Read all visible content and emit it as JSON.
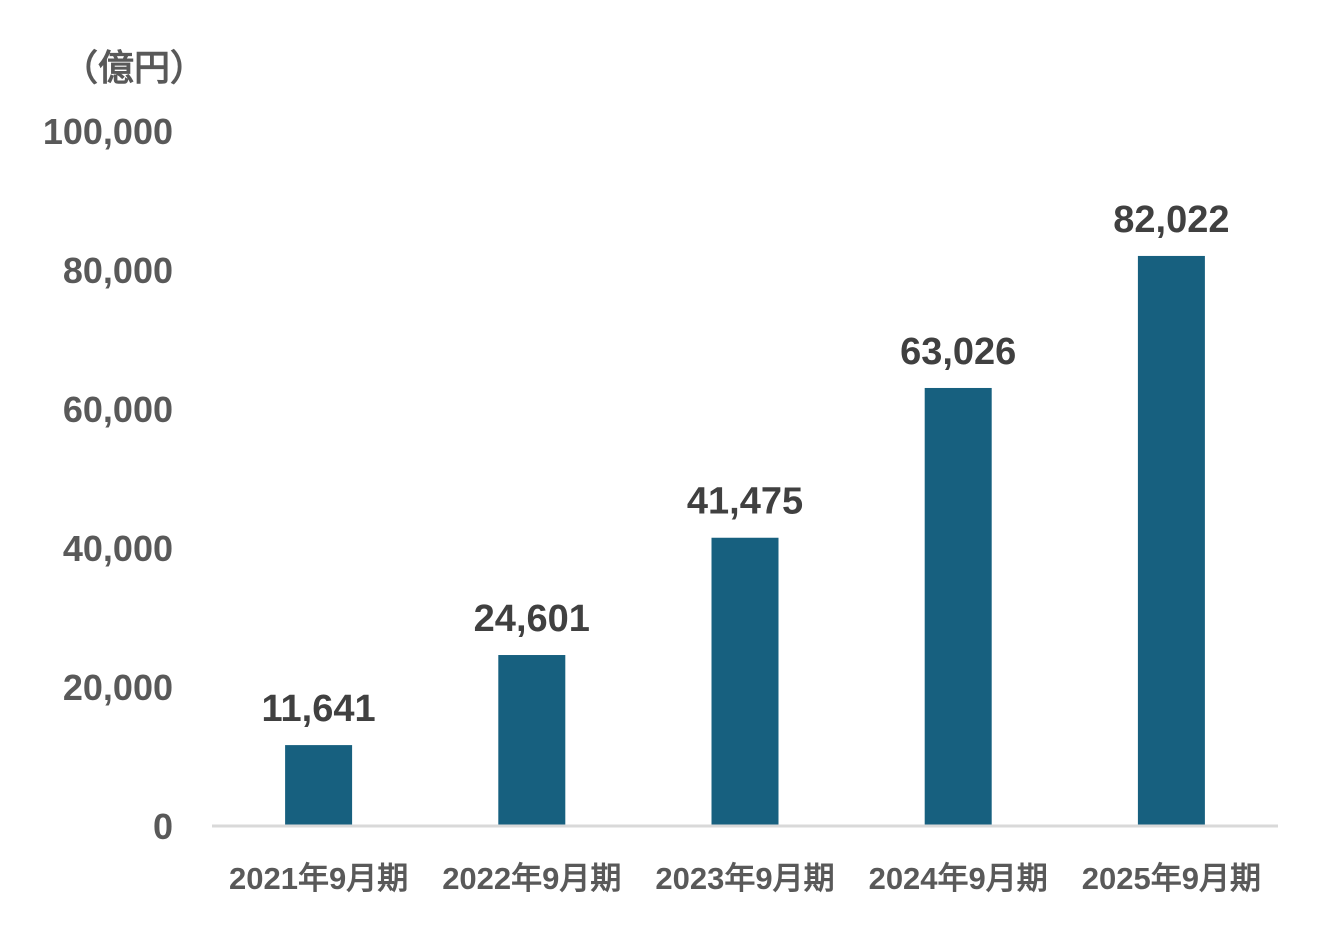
{
  "chart_data": {
    "type": "bar",
    "unit_label": "（億円）",
    "categories": [
      "2021年9月期",
      "2022年9月期",
      "2023年9月期",
      "2024年9月期",
      "2025年9月期"
    ],
    "values": [
      11641,
      24601,
      41475,
      63026,
      82022
    ],
    "value_labels": [
      "11,641",
      "24,601",
      "41,475",
      "63,026",
      "82,022"
    ],
    "ylim": [
      0,
      100000
    ],
    "yticks": [
      0,
      20000,
      40000,
      60000,
      80000,
      100000
    ],
    "ytick_labels": [
      "0",
      "20,000",
      "40,000",
      "60,000",
      "80,000",
      "100,000"
    ],
    "grid": false,
    "colors": {
      "bar": "#17607f"
    }
  }
}
